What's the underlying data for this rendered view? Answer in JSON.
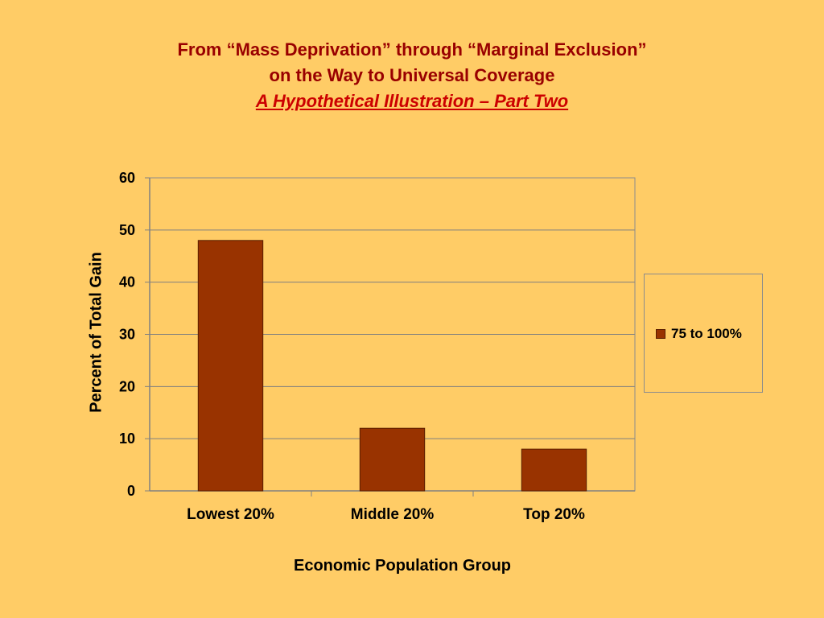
{
  "slide": {
    "title_line1": "From “Mass Deprivation” through “Marginal Exclusion”",
    "title_line2": "on the Way to Universal Coverage",
    "subtitle": "A Hypothetical Illustration – Part Two"
  },
  "chart_data": {
    "type": "bar",
    "categories": [
      "Lowest 20%",
      "Middle 20%",
      "Top 20%"
    ],
    "series": [
      {
        "name": "75 to 100%",
        "values": [
          48,
          12,
          8
        ]
      }
    ],
    "xlabel": "Economic Population Group",
    "ylabel": "Percent of Total Gain",
    "ylim": [
      0,
      60
    ],
    "yticks": [
      0,
      10,
      20,
      30,
      40,
      50,
      60
    ],
    "grid": true,
    "legend_position": "right",
    "colors": {
      "bar": "#993300",
      "bar_edge": "#5A1E00",
      "grid": "#7F7F7F"
    }
  }
}
